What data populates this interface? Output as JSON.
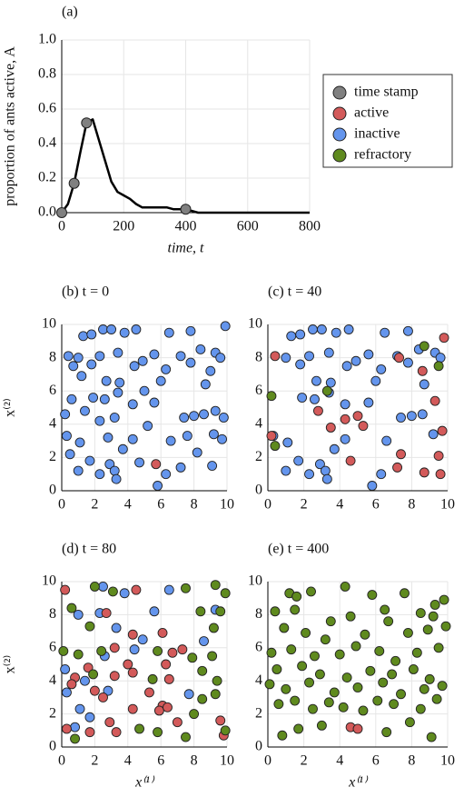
{
  "chart_data": [
    {
      "type": "line",
      "title": "(a)",
      "xlabel": "time, t",
      "ylabel": "proportion of ants active, A",
      "xlim": [
        0,
        800
      ],
      "xticks": [
        0,
        200,
        400,
        600,
        800
      ],
      "ylim": [
        0,
        1
      ],
      "yticks": [
        {
          "value": 0,
          "label": "0.0"
        },
        0.2,
        0.4,
        0.6,
        0.8,
        {
          "value": 1,
          "label": "1.0"
        }
      ],
      "grid": true,
      "series": [
        {
          "color": "#000000",
          "x": [
            0,
            20,
            40,
            60,
            80,
            100,
            120,
            140,
            160,
            180,
            200,
            220,
            240,
            260,
            300,
            340,
            360,
            400,
            420,
            440,
            800
          ],
          "values": [
            0,
            0.05,
            0.17,
            0.35,
            0.52,
            0.54,
            0.42,
            0.3,
            0.18,
            0.12,
            0.1,
            0.08,
            0.05,
            0.03,
            0.03,
            0.03,
            0.02,
            0.02,
            0.01,
            0,
            0
          ]
        },
        {
          "name": "time stamp",
          "color": "#808080",
          "marker": true,
          "x": [
            0,
            40,
            80,
            400
          ],
          "values": [
            0,
            0.17,
            0.52,
            0.02
          ]
        }
      ],
      "legend_entries": [
        {
          "name": "active",
          "color": "#d35a5a"
        },
        {
          "name": "inactive",
          "color": "#6495ed"
        },
        {
          "name": "refractory",
          "color": "#5f8a1e"
        }
      ]
    },
    {
      "type": "scatter",
      "title": "(b) t = 0",
      "ylabel": "x⁽²⁾",
      "xlim": [
        0,
        10
      ],
      "xticks": [
        0,
        2,
        4,
        6,
        8,
        10
      ],
      "ylim": [
        0,
        10
      ],
      "yticks": [
        0,
        2,
        4,
        6,
        8,
        10
      ],
      "grid": true,
      "series": [
        {
          "color": "#6495ed",
          "x": [
            2.5,
            3,
            1.3,
            1.8,
            3.8,
            4.5,
            6.5,
            7.8,
            9.9,
            0.4,
            1,
            2.3,
            3.4,
            5.6,
            7.2,
            8.4,
            9.3,
            0.7,
            1.8,
            4.4,
            4.9,
            6.3,
            7.8,
            9,
            9.6,
            1.2,
            2.7,
            3.5,
            5,
            6,
            8.7,
            0.6,
            1.9,
            2.6,
            3.4,
            4.3,
            5.6,
            0.2,
            1.4,
            2.3,
            3.2,
            5.2,
            7.4,
            8,
            8.6,
            9.3,
            9.8,
            0.3,
            1.1,
            2.8,
            3.7,
            4.3,
            6.6,
            7.6,
            8.2,
            9.2,
            9.7,
            0.5,
            1.7,
            2.9,
            3.2,
            4.7,
            6.3,
            7.2,
            9.1,
            1,
            2.3,
            3.3,
            5.8
          ],
          "values": [
            9.7,
            9.7,
            9.3,
            9.4,
            9.5,
            9.7,
            9.5,
            9.6,
            9.9,
            8.1,
            8,
            8.1,
            8.3,
            8.2,
            8.1,
            8.5,
            8.3,
            7.5,
            7.6,
            7.5,
            7.8,
            7.3,
            7.7,
            7.2,
            8,
            6.9,
            6.6,
            6.5,
            6,
            6.6,
            6.4,
            5.5,
            5.6,
            5.5,
            5.9,
            5.2,
            5.3,
            4.6,
            4.8,
            4.2,
            4.4,
            3.9,
            4.4,
            4.5,
            4.6,
            4.8,
            4.4,
            3.3,
            2.9,
            3.2,
            2.5,
            3.1,
            3,
            3.3,
            2.3,
            3.4,
            3.1,
            2.2,
            1.8,
            1.6,
            1.2,
            1.7,
            1,
            1.4,
            1.5,
            1.2,
            1,
            0.7,
            0.3
          ]
        },
        {
          "color": "#d35a5a",
          "x": [
            5.7
          ],
          "values": [
            1.6
          ]
        }
      ]
    },
    {
      "type": "scatter",
      "title": "(c) t = 40",
      "xlim": [
        0,
        10
      ],
      "xticks": [
        0,
        2,
        4,
        6,
        8,
        10
      ],
      "ylim": [
        0,
        10
      ],
      "yticks": [
        0,
        2,
        4,
        6,
        8,
        10
      ],
      "grid": true,
      "series": [
        {
          "color": "#6495ed",
          "x": [
            2.5,
            3,
            1.3,
            1.8,
            3.8,
            4.5,
            6.5,
            7.8,
            1,
            2.3,
            3.4,
            5.6,
            7.2,
            8.4,
            9.3,
            1.8,
            4.4,
            4.9,
            6.3,
            7.8,
            9.6,
            2.7,
            3.5,
            6,
            8.7,
            1.9,
            2.6,
            3.4,
            4.3,
            5.6,
            7.4,
            8,
            8.6,
            0.3,
            1.1,
            3.7,
            4.3,
            6.6,
            1.7,
            2.9,
            3.2,
            6.3,
            1,
            2.3,
            3.3,
            5.8,
            9.2
          ],
          "values": [
            9.7,
            9.7,
            9.3,
            9.4,
            9.5,
            9.7,
            9.5,
            9.6,
            8,
            8.1,
            8.3,
            8.2,
            8.1,
            8.5,
            8.3,
            7.6,
            7.5,
            7.8,
            7.3,
            7.7,
            8,
            6.6,
            6.5,
            6.6,
            6.4,
            5.6,
            5.5,
            5.9,
            5.2,
            5.3,
            4.4,
            4.5,
            4.6,
            3.3,
            2.9,
            2.5,
            3.1,
            3,
            1.8,
            1.6,
            1.2,
            1,
            1.2,
            1,
            0.7,
            0.3,
            3.4
          ]
        },
        {
          "color": "#d35a5a",
          "x": [
            9.8,
            0.4,
            7.3,
            8.6,
            5,
            4.3,
            3.5,
            7.4,
            9.5,
            8.7,
            9.6,
            7.2,
            4.6,
            9.7,
            2.8,
            0.2,
            9.3,
            5.3
          ],
          "values": [
            9.2,
            8.1,
            8,
            7.2,
            4.5,
            4.3,
            3.8,
            2.2,
            2.1,
            1.1,
            1,
            1.4,
            1.8,
            3.6,
            4.8,
            3.3,
            5.4,
            3.9
          ]
        },
        {
          "color": "#5f8a1e",
          "x": [
            8.7,
            3.3,
            0.2,
            9.5,
            0.4
          ],
          "values": [
            8.7,
            6,
            5.7,
            7.5,
            2.7
          ]
        }
      ]
    },
    {
      "type": "scatter",
      "title": "(d) t = 80",
      "xlabel": "x⁽¹⁾",
      "ylabel": "x⁽²⁾",
      "xlim": [
        0,
        10
      ],
      "xticks": [
        0,
        2,
        4,
        6,
        8,
        10
      ],
      "ylim": [
        0,
        10
      ],
      "yticks": [
        0,
        2,
        4,
        6,
        8,
        10
      ],
      "grid": true,
      "series": [
        {
          "color": "#6495ed",
          "x": [
            2.5,
            3.8,
            6.5,
            1,
            2.3,
            3.3,
            5.6,
            9.3,
            4.9,
            8.6,
            2.6,
            0.2,
            1.4,
            4.4,
            0.3,
            1.1,
            2.8,
            1.7,
            0.8,
            7.7
          ],
          "values": [
            9.7,
            9.3,
            9.5,
            8,
            8.1,
            7.2,
            8.2,
            8.3,
            6.5,
            6.4,
            5.5,
            4.7,
            4,
            5.9,
            3.3,
            2.3,
            3.4,
            1.8,
            1.2,
            3.2
          ]
        },
        {
          "color": "#d35a5a",
          "x": [
            0.2,
            4.5,
            2.7,
            4.3,
            6.1,
            3.2,
            6.7,
            7.3,
            6.3,
            4,
            4.3,
            3.2,
            0.8,
            1.6,
            0.6,
            2,
            5.3,
            6.1,
            5.9,
            6.4,
            7,
            4.3,
            2.9,
            3.3,
            1.7,
            0.3,
            9.6,
            9.8,
            6.5,
            2.5
          ],
          "values": [
            9.5,
            9.5,
            8.1,
            6.8,
            6.9,
            6,
            5.7,
            5.9,
            5,
            5,
            4.5,
            4.3,
            4.2,
            4.8,
            3.8,
            3.4,
            3.3,
            2.5,
            2.2,
            2.4,
            1.5,
            2.3,
            1.5,
            0.9,
            0.9,
            1.1,
            1.6,
            0.7,
            4.1,
            3
          ]
        },
        {
          "color": "#5f8a1e",
          "x": [
            2,
            3.1,
            7.5,
            9.3,
            9.9,
            0.6,
            8.4,
            9.6,
            9.2,
            1.7,
            0.1,
            1,
            2.4,
            5.8,
            7.9,
            9.1,
            8.5,
            9.4,
            1.9,
            5.5,
            8.5,
            9.3,
            8,
            4.7,
            5.8,
            7.5,
            9.9,
            0.8
          ],
          "values": [
            9.7,
            9.4,
            9.6,
            9.8,
            9.3,
            8.4,
            8.2,
            8.2,
            7.2,
            7.3,
            5.8,
            5.6,
            5.8,
            5.8,
            5.4,
            5.5,
            4.6,
            4,
            4.4,
            4.1,
            2.9,
            3.2,
            2,
            1.1,
            0.9,
            0.6,
            1,
            0.5
          ]
        }
      ]
    },
    {
      "type": "scatter",
      "title": "(e) t = 400",
      "xlabel": "x⁽¹⁾",
      "xlim": [
        0,
        10
      ],
      "xticks": [
        0,
        2,
        4,
        6,
        8,
        10
      ],
      "ylim": [
        0,
        10
      ],
      "yticks": [
        0,
        2,
        4,
        6,
        8,
        10
      ],
      "grid": true,
      "series": [
        {
          "color": "#5f8a1e",
          "x": [
            1.2,
            1.6,
            2.4,
            4.3,
            5.8,
            7.6,
            9.3,
            9.8,
            0.4,
            1.5,
            3.5,
            4.6,
            6.5,
            8.5,
            9.2,
            9.9,
            0.9,
            2.1,
            3.2,
            5.4,
            6.7,
            7.8,
            8.9,
            0.2,
            1.3,
            2.6,
            4,
            4.9,
            6.2,
            7.1,
            8.3,
            9.5,
            0.5,
            1.9,
            2.9,
            4.4,
            5.7,
            6.9,
            8.1,
            9,
            0.1,
            1,
            2.3,
            3.7,
            5,
            6.4,
            7.4,
            8.7,
            9.7,
            0.6,
            1.5,
            2.5,
            3.4,
            4.2,
            5.3,
            6.1,
            7,
            8.5,
            9.4,
            0.8,
            1.7,
            3,
            6.6,
            7.9,
            9.1
          ],
          "values": [
            9.3,
            9.1,
            9.4,
            9.7,
            9.2,
            9.3,
            8.6,
            8.9,
            8.2,
            8.3,
            7.6,
            7.9,
            8.3,
            8.1,
            7.9,
            7.3,
            7.2,
            6.9,
            6.5,
            6.8,
            7.6,
            6.9,
            7.1,
            5.7,
            5.9,
            5.5,
            5.6,
            6.1,
            5.8,
            5.2,
            5.7,
            6,
            4.7,
            4.9,
            4.4,
            4.2,
            4.6,
            4.4,
            4.7,
            4.1,
            3.8,
            3.5,
            3.9,
            3.3,
            3.6,
            3.9,
            3.2,
            3.5,
            3.7,
            2.6,
            2.8,
            2.3,
            2.7,
            2.4,
            2.2,
            2.8,
            2.6,
            2.3,
            2.9,
            0.7,
            1.1,
            1.3,
            0.9,
            1.5,
            0.6
          ]
        },
        {
          "color": "#d35a5a",
          "x": [
            4.6,
            5
          ],
          "values": [
            1.2,
            1.1
          ]
        }
      ]
    }
  ]
}
